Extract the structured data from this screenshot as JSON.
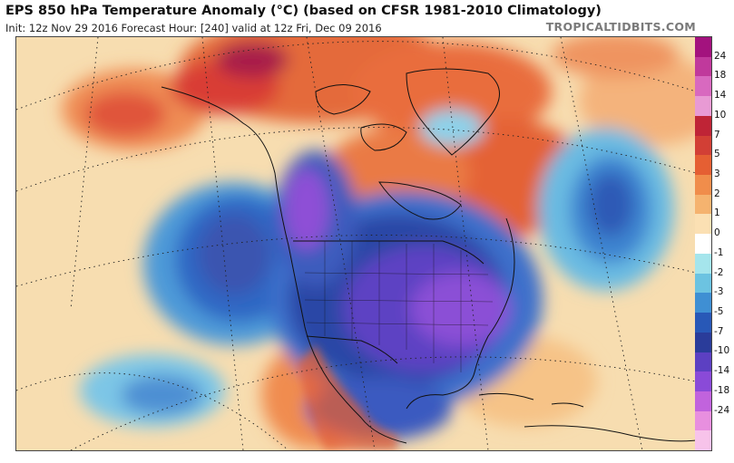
{
  "header": {
    "title": "EPS 850 hPa Temperature Anomaly (°C) (based on CFSR 1981-2010 Climatology)",
    "subtitle": "Init: 12z Nov 29 2016   Forecast Hour: [240]   valid at 12z Fri, Dec 09 2016",
    "brand": "TROPICALTIDBITS.COM"
  },
  "colorbar": {
    "labels": [
      "24",
      "18",
      "14",
      "10",
      "7",
      "5",
      "3",
      "2",
      "1",
      "0",
      "-1",
      "-2",
      "-3",
      "-5",
      "-7",
      "-10",
      "-14",
      "-18",
      "-24"
    ],
    "colors": [
      "#a3127e",
      "#c0399c",
      "#d869bf",
      "#e89ad4",
      "#bf2436",
      "#d23f35",
      "#e55f33",
      "#f08d4b",
      "#f5b36f",
      "#fbe0b3",
      "#ffffff",
      "#a5e5ec",
      "#6cc3e1",
      "#3f8fd3",
      "#2858b7",
      "#2a3c9a",
      "#5c40c2",
      "#8a4ad8",
      "#c163dd",
      "#e88fdf",
      "#f7c3ea"
    ]
  }
}
